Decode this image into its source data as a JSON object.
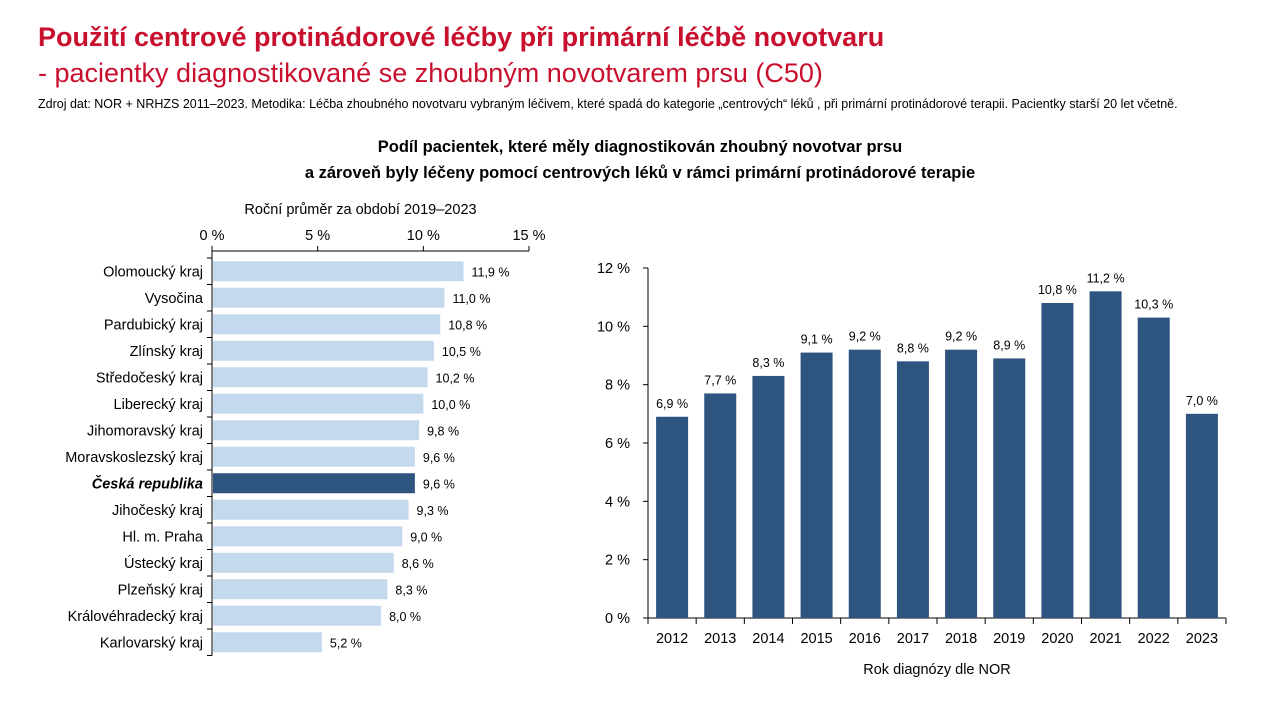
{
  "header": {
    "title_line1": "Použití centrové protinádorové léčby při primární léčbě novotvaru",
    "title_line2": "- pacientky diagnostikované se zhoubným novotvarem prsu (C50)",
    "source_text": "Zdroj dat: NOR + NRHZS 2011–2023. Metodika: Léčba zhoubného novotvaru vybraným léčivem, které spadá do kategorie „centrových“ léků , při primární protinádorové terapii. Pacientky starší 20 let včetně.",
    "chart_title_line1": "Podíl pacientek, které měly diagnostikován zhoubný novotvar prsu",
    "chart_title_line2": "a zároveň byly léčeny pomocí centrových léků v rámci primární protinádorové terapie"
  },
  "colors": {
    "title": "#c8102e",
    "bar_light": "#c5d9ee",
    "bar_dark": "#2e5480",
    "axis": "#000000"
  },
  "chart_data": [
    {
      "type": "bar",
      "orientation": "horizontal",
      "title": "Roční průměr za období 2019–2023",
      "xlim": [
        0,
        15
      ],
      "ticks": [
        0,
        5,
        10,
        15
      ],
      "tick_labels": [
        "0 %",
        "5 %",
        "10 %",
        "15 %"
      ],
      "axis_position": "top",
      "highlight_category": "Česká republika",
      "categories": [
        "Olomoucký kraj",
        "Vysočina",
        "Pardubický kraj",
        "Zlínský kraj",
        "Středočeský kraj",
        "Liberecký kraj",
        "Jihomoravský kraj",
        "Moravskoslezský kraj",
        "Česká republika",
        "Jihočeský kraj",
        "Hl. m. Praha",
        "Ústecký kraj",
        "Plzeňský kraj",
        "Královéhradecký kraj",
        "Karlovarský kraj"
      ],
      "values": [
        11.9,
        11.0,
        10.8,
        10.5,
        10.2,
        10.0,
        9.8,
        9.6,
        9.6,
        9.3,
        9.0,
        8.6,
        8.3,
        8.0,
        5.2
      ],
      "value_labels": [
        "11,9 %",
        "11,0 %",
        "10,8 %",
        "10,5 %",
        "10,2 %",
        "10,0 %",
        "9,8 %",
        "9,6 %",
        "9,6 %",
        "9,3 %",
        "9,0 %",
        "8,6 %",
        "8,3 %",
        "8,0 %",
        "5,2 %"
      ]
    },
    {
      "type": "bar",
      "orientation": "vertical",
      "xlabel": "Rok diagnózy dle NOR",
      "ylim": [
        0,
        12
      ],
      "ticks": [
        0,
        2,
        4,
        6,
        8,
        10,
        12
      ],
      "tick_labels": [
        "0 %",
        "2 %",
        "4 %",
        "6 %",
        "8 %",
        "10 %",
        "12 %"
      ],
      "categories": [
        "2012",
        "2013",
        "2014",
        "2015",
        "2016",
        "2017",
        "2018",
        "2019",
        "2020",
        "2021",
        "2022",
        "2023"
      ],
      "values": [
        6.9,
        7.7,
        8.3,
        9.1,
        9.2,
        8.8,
        9.2,
        8.9,
        10.8,
        11.2,
        10.3,
        7.0
      ],
      "value_labels": [
        "6,9 %",
        "7,7 %",
        "8,3 %",
        "9,1 %",
        "9,2 %",
        "8,8 %",
        "9,2 %",
        "8,9 %",
        "10,8 %",
        "11,2 %",
        "10,3 %",
        "7,0 %"
      ]
    }
  ]
}
